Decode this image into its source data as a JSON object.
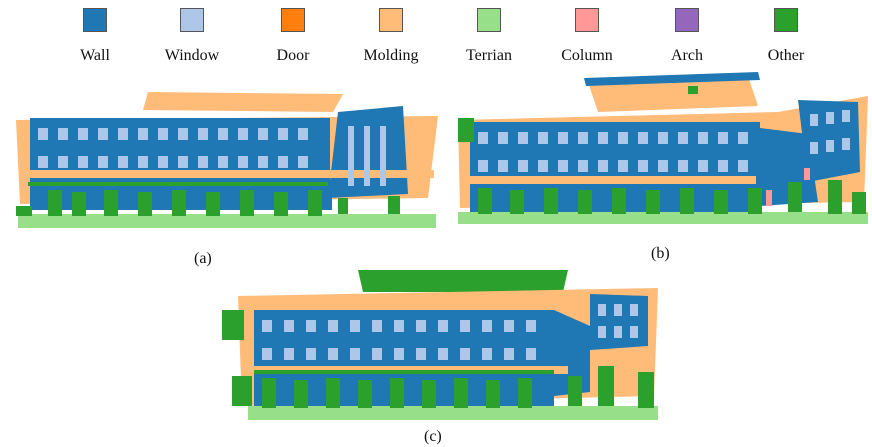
{
  "legend": [
    {
      "label": "Wall",
      "color": "#1f77b4"
    },
    {
      "label": "Window",
      "color": "#aec7e8"
    },
    {
      "label": "Door",
      "color": "#ff7f0e"
    },
    {
      "label": "Molding",
      "color": "#ffbb78"
    },
    {
      "label": "Terrian",
      "color": "#98df8a"
    },
    {
      "label": "Column",
      "color": "#ff9896"
    },
    {
      "label": "Arch",
      "color": "#9467bd"
    },
    {
      "label": "Other",
      "color": "#2ca02c"
    }
  ],
  "panels": [
    {
      "caption": "(a)"
    },
    {
      "caption": "(b)"
    },
    {
      "caption": "(c)"
    }
  ]
}
